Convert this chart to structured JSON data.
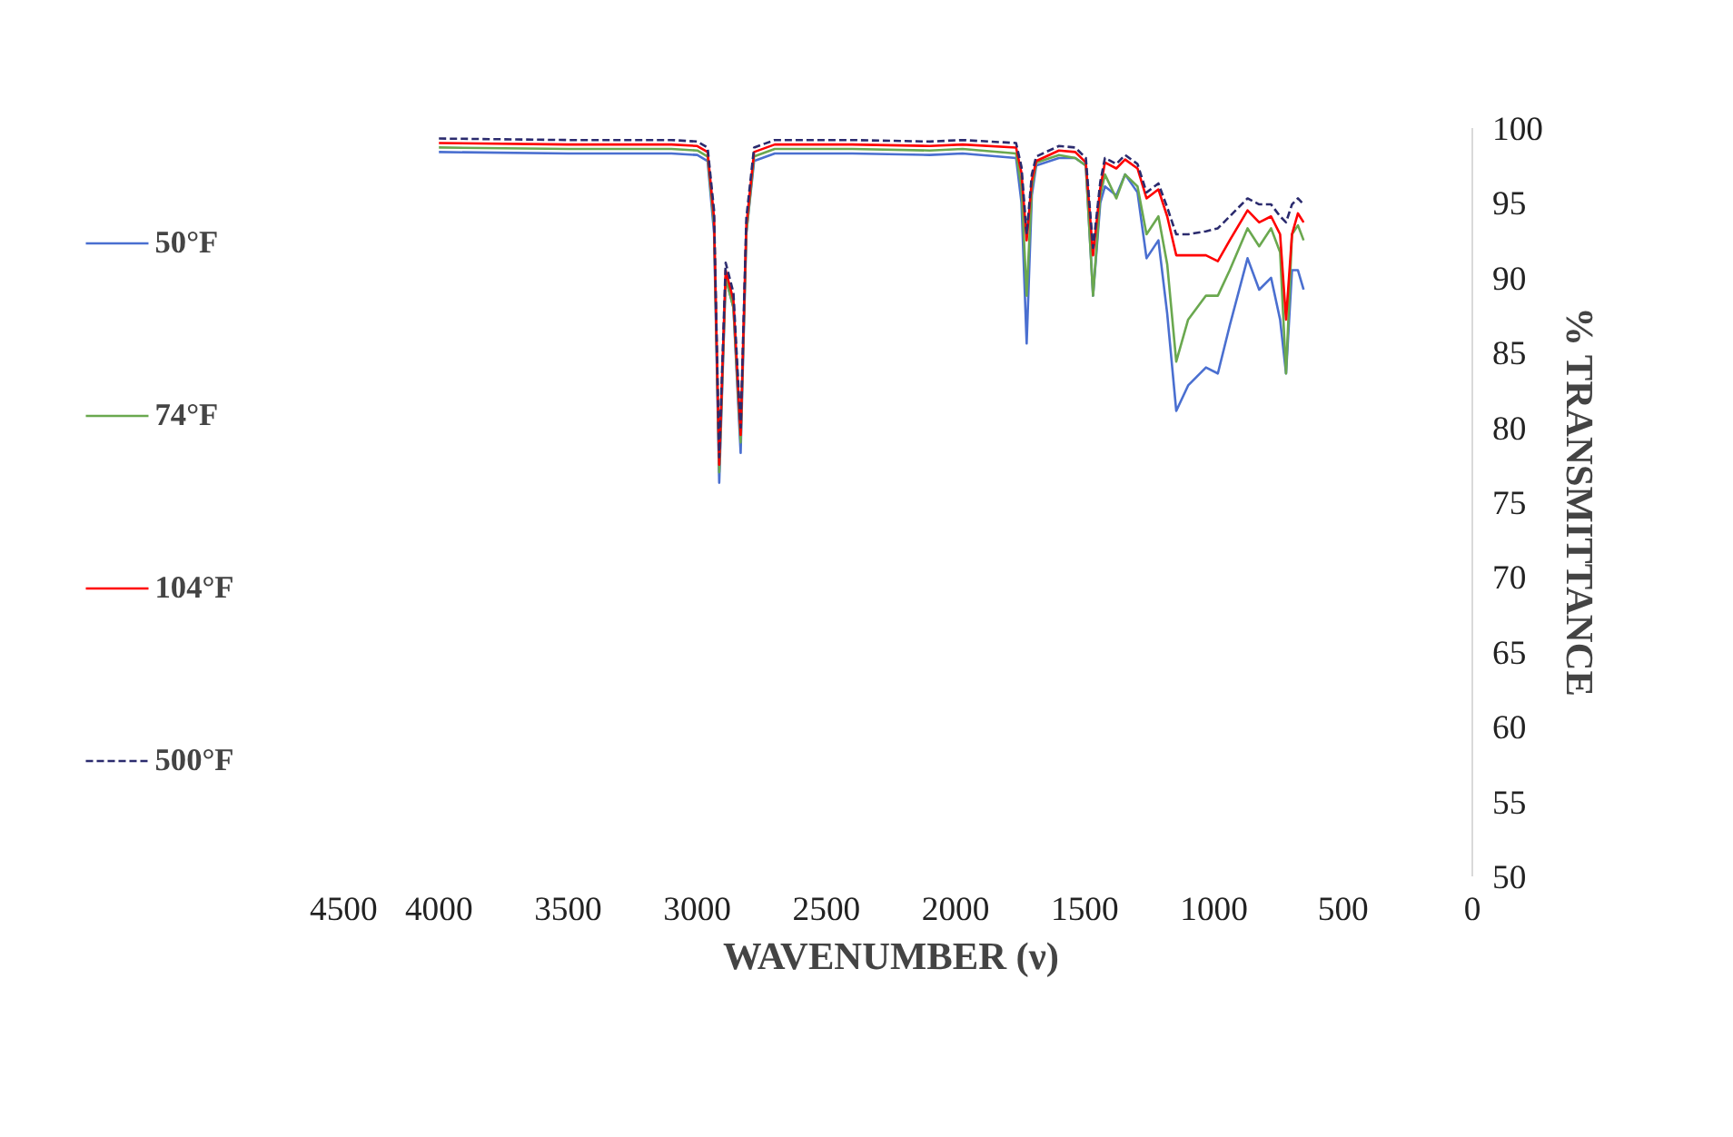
{
  "chart_data": {
    "type": "line",
    "xlabel": "WAVENUMBER (ν)",
    "ylabel": "% TRANSMITTANCE",
    "x": [
      4000,
      3500,
      3100,
      3000,
      2960,
      2935,
      2915,
      2890,
      2860,
      2832,
      2810,
      2780,
      2700,
      2400,
      2100,
      1973,
      1766,
      1745,
      1725,
      1705,
      1688,
      1600,
      1537,
      1496,
      1468,
      1440,
      1422,
      1378,
      1344,
      1296,
      1261,
      1215,
      1181,
      1146,
      1100,
      1031,
      985,
      939,
      870,
      825,
      779,
      744,
      721,
      698,
      675,
      653
    ],
    "series": [
      {
        "name": "50°F",
        "color": "#4a6fd0",
        "line_style": "solid",
        "values": [
          98.4,
          98.3,
          98.3,
          98.2,
          97.8,
          93.0,
          76.3,
          90.0,
          88.0,
          78.3,
          93.0,
          97.8,
          98.3,
          98.3,
          98.2,
          98.3,
          98.0,
          95.0,
          85.6,
          95.5,
          97.5,
          98.0,
          98.0,
          97.5,
          88.8,
          95.0,
          96.1,
          95.5,
          96.9,
          95.7,
          91.3,
          92.5,
          87.6,
          81.1,
          82.8,
          84.0,
          83.6,
          86.8,
          91.3,
          89.2,
          90.0,
          87.2,
          83.6,
          90.5,
          90.5,
          89.2
        ]
      },
      {
        "name": "74°F",
        "color": "#6aa84f",
        "line_style": "solid",
        "values": [
          98.7,
          98.6,
          98.6,
          98.5,
          98.1,
          93.5,
          77.0,
          90.0,
          88.0,
          79.0,
          93.0,
          98.1,
          98.6,
          98.6,
          98.5,
          98.6,
          98.3,
          96.0,
          88.8,
          96.0,
          97.7,
          98.2,
          98.0,
          97.5,
          88.8,
          95.5,
          96.9,
          95.3,
          96.9,
          96.1,
          92.9,
          94.1,
          90.9,
          84.4,
          87.2,
          88.8,
          88.8,
          90.5,
          93.3,
          92.1,
          93.3,
          91.7,
          83.6,
          92.9,
          93.5,
          92.5
        ]
      },
      {
        "name": "104°F",
        "color": "#ff0000",
        "line_style": "solid",
        "values": [
          99.0,
          98.9,
          98.9,
          98.8,
          98.4,
          94.0,
          77.5,
          90.5,
          88.5,
          79.5,
          93.5,
          98.4,
          98.9,
          98.9,
          98.8,
          98.9,
          98.7,
          97.0,
          92.5,
          96.5,
          97.8,
          98.5,
          98.4,
          97.7,
          91.5,
          96.0,
          97.7,
          97.3,
          97.9,
          97.3,
          95.3,
          95.9,
          94.1,
          91.5,
          91.5,
          91.5,
          91.1,
          92.5,
          94.5,
          93.7,
          94.1,
          92.9,
          87.2,
          92.9,
          94.3,
          93.7
        ]
      },
      {
        "name": "500°F",
        "color": "#2b2b6e",
        "line_style": "dashed",
        "values": [
          99.3,
          99.2,
          99.2,
          99.1,
          98.7,
          94.5,
          78.0,
          91.0,
          89.0,
          80.0,
          94.0,
          98.7,
          99.2,
          99.2,
          99.1,
          99.2,
          99.0,
          97.4,
          92.9,
          96.9,
          98.1,
          98.8,
          98.7,
          98.0,
          92.0,
          96.4,
          98.0,
          97.6,
          98.2,
          97.6,
          95.7,
          96.3,
          94.7,
          92.9,
          92.9,
          93.1,
          93.3,
          94.1,
          95.3,
          94.9,
          94.9,
          94.1,
          93.7,
          94.9,
          95.3,
          94.9
        ]
      }
    ],
    "xlim": [
      4500,
      0
    ],
    "xticks": [
      4500,
      4000,
      3500,
      3000,
      2500,
      2000,
      1500,
      1000,
      500,
      0
    ],
    "ylim": [
      50,
      100
    ],
    "yticks": [
      50,
      55,
      60,
      65,
      70,
      75,
      80,
      85,
      90,
      95,
      100
    ],
    "grid": false,
    "legend": "left"
  }
}
